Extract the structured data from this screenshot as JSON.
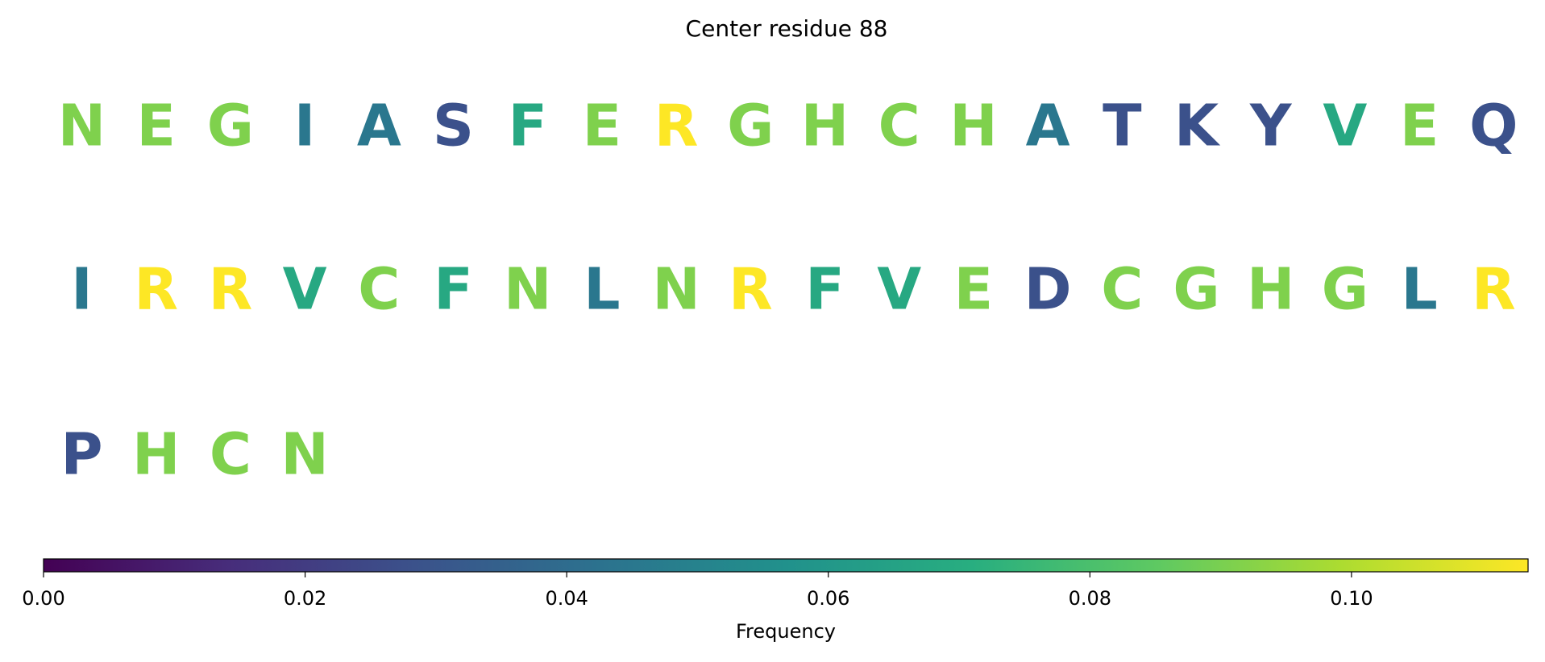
{
  "chart_data": {
    "type": "sequence",
    "title": "Center residue 88",
    "categories": [
      "N",
      "E",
      "G",
      "I",
      "A",
      "S",
      "F",
      "E",
      "R",
      "G",
      "H",
      "C",
      "H",
      "A",
      "T",
      "K",
      "Y",
      "V",
      "E",
      "Q",
      "I",
      "R",
      "R",
      "V",
      "C",
      "F",
      "N",
      "L",
      "N",
      "R",
      "F",
      "V",
      "E",
      "D",
      "C",
      "G",
      "H",
      "G",
      "L",
      "R",
      "P",
      "H",
      "C",
      "N"
    ],
    "values": [
      0.091,
      0.091,
      0.091,
      0.045,
      0.045,
      0.028,
      0.068,
      0.091,
      0.1135,
      0.091,
      0.091,
      0.091,
      0.091,
      0.045,
      0.028,
      0.028,
      0.028,
      0.068,
      0.091,
      0.028,
      0.045,
      0.1135,
      0.1135,
      0.068,
      0.091,
      0.068,
      0.091,
      0.045,
      0.091,
      0.1135,
      0.068,
      0.068,
      0.091,
      0.028,
      0.091,
      0.091,
      0.091,
      0.091,
      0.045,
      0.1135,
      0.028,
      0.091,
      0.091,
      0.091
    ],
    "colormap": "viridis",
    "colorbar_label": "Frequency",
    "clim": [
      0,
      0.1135
    ],
    "cticks": [
      {
        "value": 0,
        "label": "0.00"
      },
      {
        "value": 0.02,
        "label": "0.02"
      },
      {
        "value": 0.04,
        "label": "0.04"
      },
      {
        "value": 0.06,
        "label": "0.06"
      },
      {
        "value": 0.08,
        "label": "0.08"
      },
      {
        "value": 0.1,
        "label": "0.10"
      }
    ]
  }
}
